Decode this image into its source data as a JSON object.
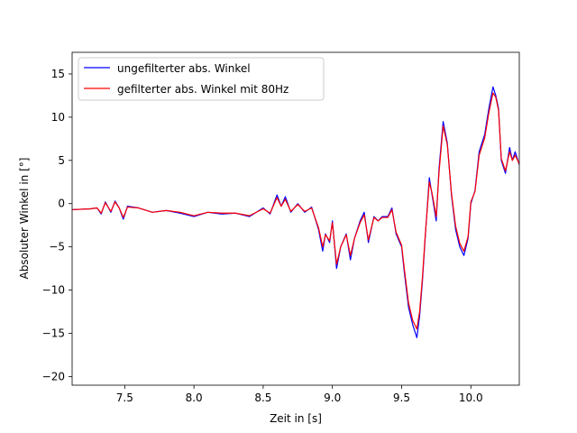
{
  "chart_data": {
    "type": "line",
    "title": "",
    "xlabel": "Zeit in [s]",
    "ylabel": "Absoluter Winkel in [°]",
    "xlim": [
      7.12,
      10.35
    ],
    "ylim": [
      -21,
      17.5
    ],
    "xticks": [
      7.5,
      8.0,
      8.5,
      9.0,
      9.5,
      10.0
    ],
    "xtick_labels": [
      "7.5",
      "8.0",
      "8.5",
      "9.0",
      "9.5",
      "10.0"
    ],
    "yticks": [
      -20,
      -15,
      -10,
      -5,
      0,
      5,
      10,
      15
    ],
    "ytick_labels": [
      "−20",
      "−15",
      "−10",
      "−5",
      "0",
      "5",
      "10",
      "15"
    ],
    "grid": false,
    "legend_position": "upper-left",
    "series": [
      {
        "name": "ungefilterter abs. Winkel",
        "color": "#0000ff",
        "x": [
          7.12,
          7.25,
          7.3,
          7.33,
          7.36,
          7.4,
          7.43,
          7.46,
          7.49,
          7.52,
          7.6,
          7.7,
          7.8,
          7.9,
          8.0,
          8.1,
          8.2,
          8.3,
          8.4,
          8.5,
          8.55,
          8.6,
          8.63,
          8.66,
          8.7,
          8.75,
          8.8,
          8.85,
          8.9,
          8.93,
          8.95,
          8.98,
          9.0,
          9.03,
          9.06,
          9.1,
          9.13,
          9.16,
          9.2,
          9.23,
          9.26,
          9.3,
          9.33,
          9.36,
          9.4,
          9.43,
          9.46,
          9.5,
          9.52,
          9.55,
          9.58,
          9.61,
          9.63,
          9.65,
          9.67,
          9.7,
          9.72,
          9.75,
          9.77,
          9.8,
          9.83,
          9.86,
          9.89,
          9.92,
          9.95,
          9.98,
          10.0,
          10.03,
          10.06,
          10.1,
          10.13,
          10.16,
          10.18,
          10.2,
          10.22,
          10.25,
          10.28,
          10.3,
          10.32,
          10.35
        ],
        "y": [
          -0.7,
          -0.6,
          -0.5,
          -1.2,
          0.2,
          -1.0,
          0.3,
          -0.5,
          -1.8,
          -0.3,
          -0.5,
          -1.0,
          -0.8,
          -1.1,
          -1.5,
          -1.0,
          -1.2,
          -1.1,
          -1.5,
          -0.5,
          -1.2,
          1.0,
          -0.3,
          0.8,
          -1.0,
          0.0,
          -1.0,
          -0.4,
          -3.0,
          -5.5,
          -3.5,
          -4.5,
          -2.0,
          -7.5,
          -5.0,
          -3.5,
          -6.5,
          -4.0,
          -2.0,
          -1.0,
          -4.5,
          -1.5,
          -2.0,
          -1.5,
          -1.5,
          -0.5,
          -3.5,
          -5.0,
          -8.0,
          -12.0,
          -14.0,
          -15.5,
          -13.0,
          -9.0,
          -4.0,
          3.0,
          1.0,
          -2.0,
          4.0,
          9.5,
          7.0,
          1.0,
          -3.0,
          -5.0,
          -6.0,
          -4.0,
          0.0,
          1.5,
          6.0,
          8.0,
          11.0,
          13.5,
          12.5,
          11.0,
          5.0,
          3.5,
          6.5,
          5.0,
          6.0,
          4.5
        ]
      },
      {
        "name": "gefilterter abs. Winkel mit 80Hz",
        "color": "#ff0000",
        "x": [
          7.12,
          7.25,
          7.3,
          7.33,
          7.36,
          7.4,
          7.43,
          7.46,
          7.49,
          7.52,
          7.6,
          7.7,
          7.8,
          7.9,
          8.0,
          8.1,
          8.2,
          8.3,
          8.4,
          8.5,
          8.55,
          8.6,
          8.63,
          8.66,
          8.7,
          8.75,
          8.8,
          8.85,
          8.9,
          8.93,
          8.95,
          8.98,
          9.0,
          9.03,
          9.06,
          9.1,
          9.13,
          9.16,
          9.2,
          9.23,
          9.26,
          9.3,
          9.33,
          9.36,
          9.4,
          9.43,
          9.46,
          9.5,
          9.52,
          9.55,
          9.58,
          9.61,
          9.63,
          9.65,
          9.67,
          9.7,
          9.72,
          9.75,
          9.77,
          9.8,
          9.83,
          9.86,
          9.89,
          9.92,
          9.95,
          9.98,
          10.0,
          10.03,
          10.06,
          10.1,
          10.13,
          10.16,
          10.18,
          10.2,
          10.22,
          10.25,
          10.28,
          10.3,
          10.32,
          10.35
        ],
        "y": [
          -0.7,
          -0.6,
          -0.5,
          -1.1,
          0.1,
          -0.9,
          0.2,
          -0.5,
          -1.6,
          -0.4,
          -0.5,
          -1.0,
          -0.8,
          -1.0,
          -1.4,
          -1.0,
          -1.1,
          -1.1,
          -1.4,
          -0.6,
          -1.1,
          0.7,
          -0.3,
          0.5,
          -0.9,
          -0.1,
          -0.9,
          -0.5,
          -2.8,
          -5.0,
          -3.6,
          -4.3,
          -2.2,
          -7.0,
          -5.0,
          -3.6,
          -6.0,
          -4.0,
          -2.2,
          -1.3,
          -4.2,
          -1.6,
          -2.0,
          -1.6,
          -1.6,
          -0.7,
          -3.3,
          -4.8,
          -7.6,
          -11.5,
          -13.5,
          -14.5,
          -12.5,
          -8.6,
          -3.8,
          2.5,
          1.2,
          -1.5,
          3.6,
          9.0,
          6.8,
          1.2,
          -2.6,
          -4.6,
          -5.5,
          -3.8,
          0.2,
          1.4,
          5.6,
          7.6,
          10.5,
          12.8,
          12.3,
          10.8,
          5.2,
          3.8,
          6.0,
          5.0,
          5.6,
          4.6
        ]
      }
    ]
  }
}
